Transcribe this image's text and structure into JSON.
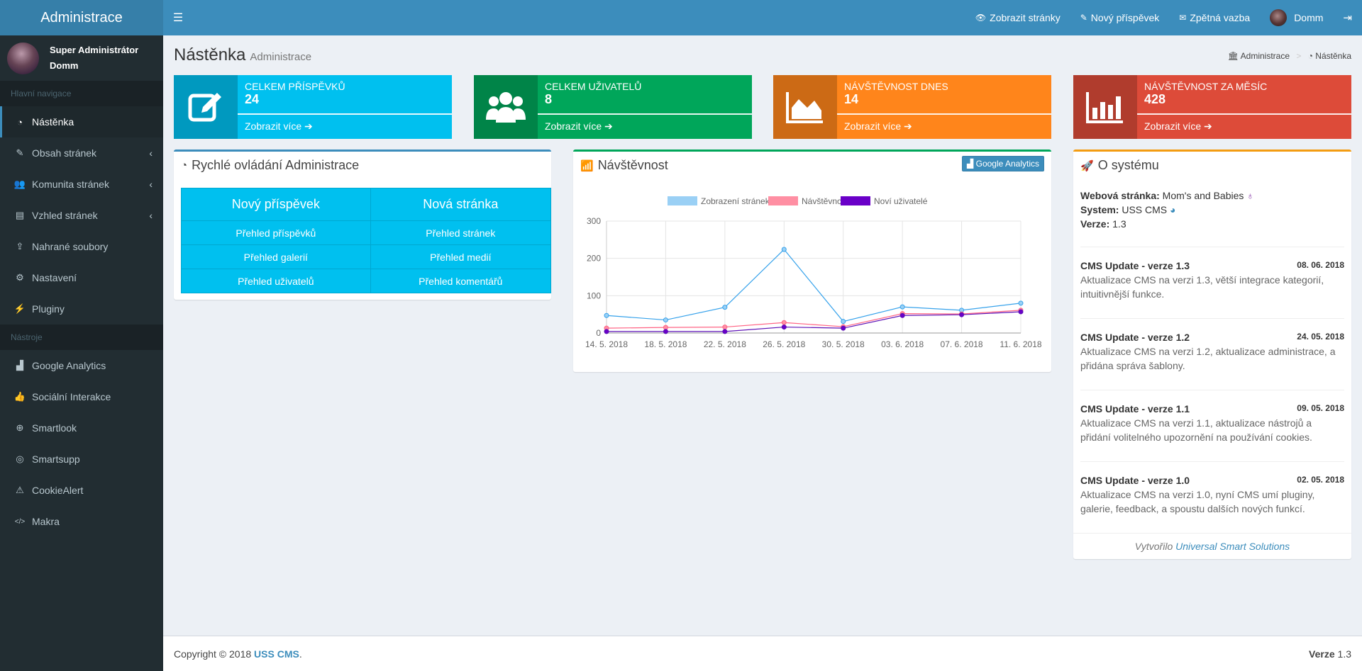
{
  "header": {
    "logo": "Administrace",
    "links": [
      {
        "icon": "eye-icon",
        "label": "Zobrazit stránky"
      },
      {
        "icon": "edit-icon",
        "label": "Nový příspěvek"
      },
      {
        "icon": "envelope-icon",
        "label": "Zpětná vazba"
      }
    ],
    "user": "Domm"
  },
  "sidebar": {
    "user_line1": "Super Administrátor",
    "user_line2": "Domm",
    "nav_header": "Hlavní navigace",
    "nav_items": [
      {
        "icon": "dashboard-icon",
        "label": "Nástěnka",
        "active": true
      },
      {
        "icon": "edit-icon",
        "label": "Obsah stránek",
        "chevron": true
      },
      {
        "icon": "users-icon",
        "label": "Komunita stránek",
        "chevron": true
      },
      {
        "icon": "file-icon",
        "label": "Vzhled stránek",
        "chevron": true
      },
      {
        "icon": "upload-icon",
        "label": "Nahrané soubory"
      },
      {
        "icon": "gear-icon",
        "label": "Nastavení"
      },
      {
        "icon": "plug-icon",
        "label": "Pluginy"
      }
    ],
    "tools_header": "Nástroje",
    "tool_items": [
      {
        "icon": "area-chart-icon",
        "label": "Google Analytics"
      },
      {
        "icon": "thumbs-up-icon",
        "label": "Sociální Interakce"
      },
      {
        "icon": "binoculars-icon",
        "label": "Smartlook"
      },
      {
        "icon": "life-ring-icon",
        "label": "Smartsupp"
      },
      {
        "icon": "warning-icon",
        "label": "CookieAlert"
      },
      {
        "icon": "code-icon",
        "label": "Makra"
      }
    ]
  },
  "page": {
    "title": "Nástěnka",
    "subtitle": "Administrace",
    "breadcrumb": [
      "Administrace",
      "Nástěnka"
    ]
  },
  "info_boxes": [
    {
      "label": "Celkem příspěvků",
      "value": "24",
      "more": "Zobrazit více",
      "color": "#00c0ef",
      "icon": "edit-icon"
    },
    {
      "label": "Celkem uživatelů",
      "value": "8",
      "more": "Zobrazit více",
      "color": "#00a65a",
      "icon": "users-icon"
    },
    {
      "label": "Návštěvnost dnes",
      "value": "14",
      "more": "Zobrazit více",
      "color": "#ff851b",
      "icon": "area-chart-icon"
    },
    {
      "label": "Návštěvnost za měsíc",
      "value": "428",
      "more": "Zobrazit více",
      "color": "#dd4b39",
      "icon": "bar-chart-icon"
    }
  ],
  "quick": {
    "title": "Rychlé ovládání Administrace",
    "head": [
      "Nový příspěvek",
      "Nová stránka"
    ],
    "rows": [
      [
        "Přehled příspěvků",
        "Přehled stránek"
      ],
      [
        "Přehled galerií",
        "Přehled medií"
      ],
      [
        "Přehled uživatelů",
        "Přehled komentářů"
      ]
    ]
  },
  "visits": {
    "title": "Návštěvnost",
    "button": "Google Analytics"
  },
  "chart_data": {
    "type": "line",
    "x": [
      "14. 5. 2018",
      "18. 5. 2018",
      "22. 5. 2018",
      "26. 5. 2018",
      "30. 5. 2018",
      "03. 6. 2018",
      "07. 6. 2018",
      "11. 6. 2018"
    ],
    "ylim": [
      0,
      300
    ],
    "yticks": [
      0,
      100,
      200,
      300
    ],
    "grid": true,
    "legend": "top",
    "series": [
      {
        "name": "Zobrazení stránek",
        "color": "#36a2eb",
        "fill": "#9ad0f5",
        "values": [
          47,
          35,
          69,
          224,
          31,
          70,
          61,
          80
        ]
      },
      {
        "name": "Návštěvnost",
        "color": "#ff6384",
        "fill": "#ff8fa3",
        "values": [
          13,
          15,
          16,
          28,
          17,
          52,
          51,
          61
        ]
      },
      {
        "name": "Noví uživatelé",
        "color": "#5b0fb5",
        "fill": "#6a00c8",
        "values": [
          4,
          4,
          4,
          16,
          13,
          47,
          49,
          57
        ]
      }
    ]
  },
  "about": {
    "title": "O systému",
    "web_label": "Webová stránka:",
    "web_value": "Mom's and Babies",
    "system_label": "System:",
    "system_value": "USS CMS",
    "version_label": "Verze:",
    "version_value": "1.3",
    "updates": [
      {
        "title": "CMS Update - verze 1.3",
        "date": "08. 06. 2018",
        "text": "Aktualizace CMS na verzi 1.3, větší integrace kategorií, intuitivnější funkce."
      },
      {
        "title": "CMS Update - verze 1.2",
        "date": "24. 05. 2018",
        "text": "Aktualizace CMS na verzi 1.2, aktualizace administrace, a přidána správa šablony."
      },
      {
        "title": "CMS Update - verze 1.1",
        "date": "09. 05. 2018",
        "text": "Aktualizace CMS na verzi 1.1, aktualizace nástrojů a přidání volitelného upozornění na používání cookies."
      },
      {
        "title": "CMS Update - verze 1.0",
        "date": "02. 05. 2018",
        "text": "Aktualizace CMS na verzi 1.0, nyní CMS umí pluginy, galerie, feedback, a spoustu dalších nových funkcí."
      }
    ],
    "credit_prefix": "Vytvořilo",
    "credit_link": "Universal Smart Solutions"
  },
  "footer": {
    "copyright": "Copyright © 2018",
    "brand": "USS CMS",
    "dot": ".",
    "version_label": "Verze",
    "version_value": "1.3"
  }
}
